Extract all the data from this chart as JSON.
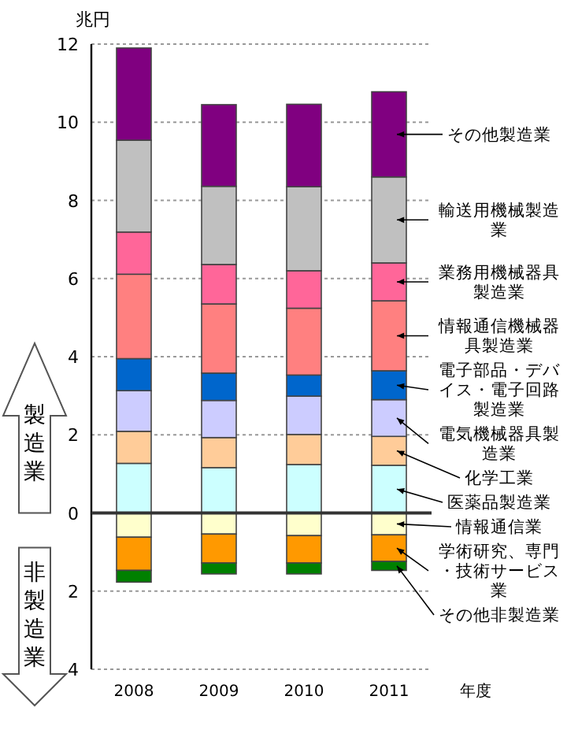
{
  "chart_data": {
    "type": "bar",
    "stacked": true,
    "ylabel": "兆円",
    "xlabel": "年度",
    "categories": [
      "2008",
      "2009",
      "2010",
      "2011"
    ],
    "ylim": [
      -4,
      12
    ],
    "yticks": [
      {
        "value": -4,
        "label": "4"
      },
      {
        "value": -2,
        "label": "2"
      },
      0,
      2,
      4,
      6,
      8,
      10,
      12
    ],
    "grid": "y",
    "legend": "right",
    "annotations": [
      "製造業",
      "非製造業"
    ],
    "series": [
      {
        "name": "医薬品製造業",
        "color": "#ccffff",
        "values": [
          1.27,
          1.16,
          1.24,
          1.22
        ]
      },
      {
        "name": "化学工業",
        "color": "#ffcc99",
        "values": [
          0.82,
          0.77,
          0.77,
          0.74
        ]
      },
      {
        "name": "電気機械器具製造業",
        "color": "#ccccff",
        "values": [
          1.04,
          0.95,
          0.98,
          0.94
        ]
      },
      {
        "name": "電子部品・デバイス・電子回路製造業",
        "color": "#0066cc",
        "values": [
          0.82,
          0.7,
          0.54,
          0.74
        ]
      },
      {
        "name": "情報通信機械器具製造業",
        "color": "#ff8080",
        "values": [
          2.16,
          1.77,
          1.71,
          1.79
        ]
      },
      {
        "name": "業務用機械器具製造業",
        "color": "#ff6699",
        "values": [
          1.08,
          1.01,
          0.96,
          0.97
        ]
      },
      {
        "name": "輸送用機械製造業",
        "color": "#c0c0c0",
        "values": [
          2.35,
          2.0,
          2.15,
          2.2
        ]
      },
      {
        "name": "その他製造業",
        "color": "#800080",
        "values": [
          2.36,
          2.09,
          2.11,
          2.18
        ]
      },
      {
        "name": "情報通信業",
        "color": "#ffffcc",
        "values": [
          -0.62,
          -0.54,
          -0.58,
          -0.56
        ]
      },
      {
        "name": "学術研究、専門・技術サービス業",
        "color": "#ff9900",
        "values": [
          -0.85,
          -0.74,
          -0.7,
          -0.68
        ]
      },
      {
        "name": "その他非製造業",
        "color": "#008000",
        "values": [
          -0.3,
          -0.28,
          -0.28,
          -0.23
        ]
      }
    ]
  }
}
